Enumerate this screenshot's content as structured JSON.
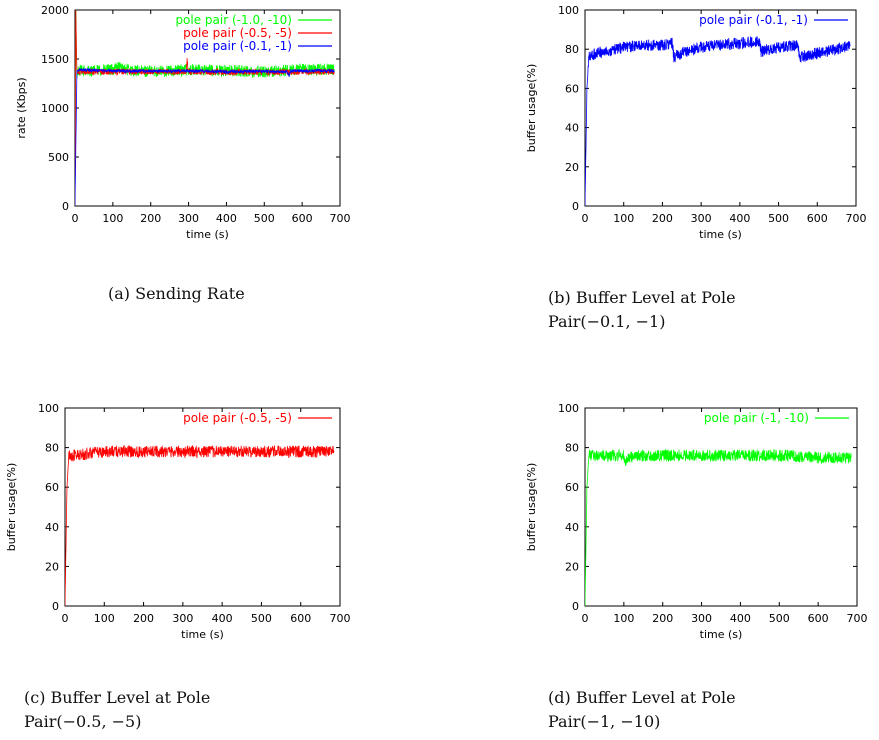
{
  "figures": [
    {
      "caption": {
        "lines": [
          "(a) Sending Rate"
        ]
      },
      "chart_data": {
        "type": "line",
        "xlabel": "time (s)",
        "ylabel": "rate (Kbps)",
        "xlim": [
          0,
          700
        ],
        "ylim": [
          0,
          2000
        ],
        "xticks": [
          0,
          100,
          200,
          300,
          400,
          500,
          600,
          700
        ],
        "yticks": [
          0,
          500,
          1000,
          1500,
          2000
        ],
        "tick_labels_x": [
          "0",
          "100",
          "200",
          "300",
          "400",
          "500",
          "600",
          "700"
        ],
        "tick_labels_y": [
          "0",
          "500",
          "1000",
          "1500",
          "2000"
        ],
        "legend_position": "top-right",
        "series": [
          {
            "name": "pole pair (-1.0, -10)",
            "color": "#00ff00",
            "x": [
              0,
              2,
              5,
              8,
              15,
              50,
              100,
              110,
              150,
              200,
              250,
              300,
              350,
              400,
              450,
              500,
              550,
              600,
              650,
              685
            ],
            "y": [
              0,
              2000,
              1300,
              1380,
              1380,
              1380,
              1390,
              1420,
              1380,
              1375,
              1380,
              1390,
              1385,
              1380,
              1375,
              1370,
              1380,
              1390,
              1395,
              1390
            ],
            "noise": 60
          },
          {
            "name": "pole pair (-0.5, -5)",
            "color": "#ff0000",
            "x": [
              0,
              2,
              5,
              10,
              50,
              100,
              200,
              293,
              296,
              300,
              400,
              500,
              600,
              685
            ],
            "y": [
              0,
              2000,
              1350,
              1370,
              1370,
              1370,
              1370,
              1370,
              1480,
              1370,
              1365,
              1365,
              1370,
              1370
            ],
            "noise": 30
          },
          {
            "name": "pole pair (-0.1, -1)",
            "color": "#0000ff",
            "x": [
              0,
              5,
              10,
              50,
              100,
              200,
              300,
              400,
              500,
              560,
              565,
              570,
              600,
              685
            ],
            "y": [
              0,
              1380,
              1390,
              1385,
              1380,
              1375,
              1380,
              1370,
              1375,
              1370,
              1320,
              1380,
              1380,
              1380
            ],
            "noise": 15
          }
        ]
      }
    },
    {
      "caption": {
        "lines": [
          "(b) Buffer Level at Pole",
          "Pair(−0.1, −1)"
        ]
      },
      "chart_data": {
        "type": "line",
        "xlabel": "time (s)",
        "ylabel": "buffer usage(%)",
        "xlim": [
          0,
          700
        ],
        "ylim": [
          0,
          100
        ],
        "xticks": [
          0,
          100,
          200,
          300,
          400,
          500,
          600,
          700
        ],
        "yticks": [
          0,
          20,
          40,
          60,
          80,
          100
        ],
        "tick_labels_x": [
          "0",
          "100",
          "200",
          "300",
          "400",
          "500",
          "600",
          "700"
        ],
        "tick_labels_y": [
          "0",
          "20",
          "40",
          "60",
          "80",
          "100"
        ],
        "legend_position": "top-right",
        "series": [
          {
            "name": "pole pair (-0.1, -1)",
            "color": "#0000ff",
            "x": [
              0,
              5,
              10,
              30,
              60,
              100,
              150,
              200,
              225,
              230,
              250,
              300,
              350,
              400,
              440,
              450,
              455,
              500,
              540,
              550,
              555,
              600,
              650,
              685
            ],
            "y": [
              0,
              60,
              76,
              78,
              79,
              81,
              82,
              82,
              83,
              76,
              78,
              81,
              82,
              83,
              84,
              84,
              79,
              81,
              82,
              82,
              76,
              78,
              80,
              82
            ],
            "noise": 3
          }
        ]
      }
    },
    {
      "caption": {
        "lines": [
          "(c) Buffer Level at Pole",
          "Pair(−0.5, −5)"
        ]
      },
      "chart_data": {
        "type": "line",
        "xlabel": "time (s)",
        "ylabel": "buffer usage(%)",
        "xlim": [
          0,
          700
        ],
        "ylim": [
          0,
          100
        ],
        "xticks": [
          0,
          100,
          200,
          300,
          400,
          500,
          600,
          700
        ],
        "yticks": [
          0,
          20,
          40,
          60,
          80,
          100
        ],
        "tick_labels_x": [
          "0",
          "100",
          "200",
          "300",
          "400",
          "500",
          "600",
          "700"
        ],
        "tick_labels_y": [
          "0",
          "20",
          "40",
          "60",
          "80",
          "100"
        ],
        "legend_position": "top-right",
        "series": [
          {
            "name": "pole pair (-0.5, -5)",
            "color": "#ff0000",
            "x": [
              0,
              5,
              10,
              30,
              60,
              100,
              150,
              200,
              300,
              400,
              500,
              600,
              685
            ],
            "y": [
              0,
              60,
              76,
              76,
              77,
              78,
              78,
              78,
              78,
              78,
              78,
              78,
              78
            ],
            "noise": 3
          }
        ]
      }
    },
    {
      "caption": {
        "lines": [
          "(d) Buffer Level at Pole",
          "Pair(−1, −10)"
        ]
      },
      "chart_data": {
        "type": "line",
        "xlabel": "time (s)",
        "ylabel": "buffer usage(%)",
        "xlim": [
          0,
          700
        ],
        "ylim": [
          0,
          100
        ],
        "xticks": [
          0,
          100,
          200,
          300,
          400,
          500,
          600,
          700
        ],
        "yticks": [
          0,
          20,
          40,
          60,
          80,
          100
        ],
        "tick_labels_x": [
          "0",
          "100",
          "200",
          "300",
          "400",
          "500",
          "600",
          "700"
        ],
        "tick_labels_y": [
          "0",
          "20",
          "40",
          "60",
          "80",
          "100"
        ],
        "legend_position": "top-right",
        "series": [
          {
            "name": "pole pair (-1, -10)",
            "color": "#00ff00",
            "x": [
              0,
              5,
              10,
              30,
              60,
              100,
              105,
              110,
              150,
              200,
              300,
              400,
              500,
              600,
              685
            ],
            "y": [
              0,
              60,
              76,
              76,
              76,
              76,
              73,
              75,
              76,
              76,
              76,
              76,
              76,
              75,
              75
            ],
            "noise": 3
          }
        ]
      }
    }
  ]
}
